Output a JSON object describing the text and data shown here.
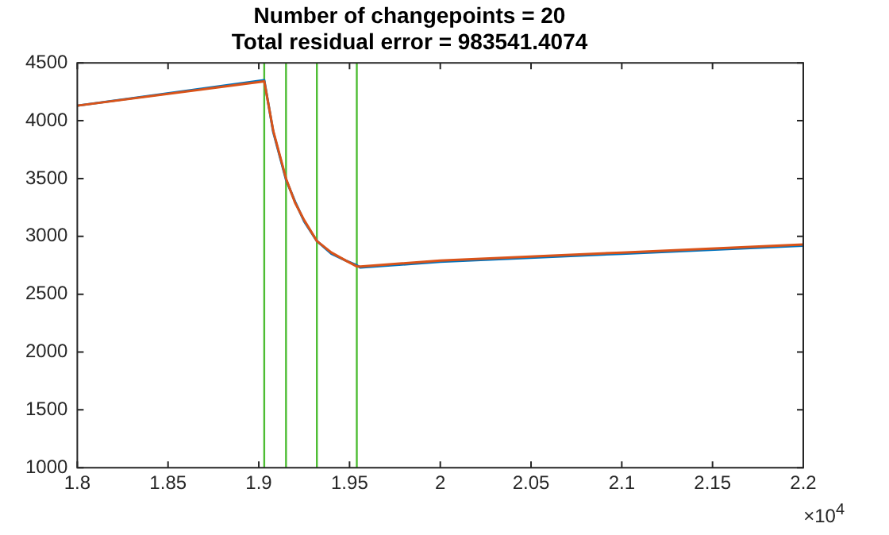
{
  "chart_data": {
    "type": "line",
    "title": "Number of changepoints = 20",
    "subtitle": "Total residual error = 983541.4074",
    "x": [
      1.8,
      1.903,
      1.908,
      1.915,
      1.92,
      1.925,
      1.932,
      1.94,
      1.948,
      1.954,
      1.956,
      2.0,
      2.1,
      2.2
    ],
    "series": [
      {
        "color": "#d95319",
        "values": [
          4130,
          4340,
          3910,
          3500,
          3290,
          3140,
          2960,
          2860,
          2790,
          2740,
          2740,
          2790,
          2860,
          2930
        ]
      },
      {
        "color": "#0072bd",
        "values": [
          4130,
          4350,
          3900,
          3490,
          3300,
          3130,
          2960,
          2850,
          2790,
          2750,
          2730,
          2780,
          2850,
          2920
        ]
      }
    ],
    "xlim": [
      1.8,
      2.2
    ],
    "xticks": [
      1.8,
      1.85,
      1.9,
      1.95,
      2,
      2.05,
      2.1,
      2.15,
      2.2
    ],
    "ylim": [
      1000,
      4500
    ],
    "yticks": [
      1000,
      1500,
      2000,
      2500,
      3000,
      3500,
      4000,
      4500
    ],
    "ref_lines": [
      {
        "axis": "x",
        "value": 1.903,
        "color": "#4dbd33"
      },
      {
        "axis": "x",
        "value": 1.915,
        "color": "#4dbd33"
      },
      {
        "axis": "x",
        "value": 1.932,
        "color": "#4dbd33"
      },
      {
        "axis": "x",
        "value": 1.954,
        "color": "#4dbd33"
      }
    ],
    "annotations": [
      "×10$^{4}$"
    ],
    "grid": false,
    "legend": false,
    "marker": "none",
    "line_style": "solid"
  }
}
